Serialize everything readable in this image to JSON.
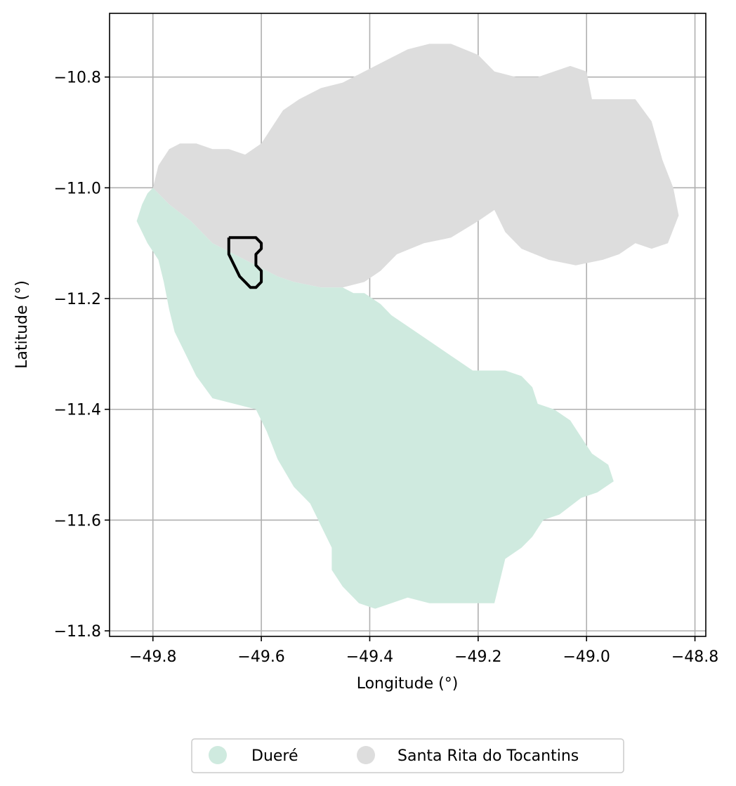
{
  "chart_data": {
    "type": "map",
    "xlabel": "Longitude (°)",
    "ylabel": "Latitude (°)",
    "xlim": [
      -49.88,
      -48.78
    ],
    "ylim": [
      -11.81,
      -10.685
    ],
    "x_ticks": [
      -49.8,
      -49.6,
      -49.4,
      -49.2,
      -49.0,
      -48.8
    ],
    "x_tick_labels": [
      "−49.8",
      "−49.6",
      "−49.4",
      "−49.2",
      "−49.0",
      "−48.8"
    ],
    "y_ticks": [
      -10.8,
      -11.0,
      -11.2,
      -11.4,
      -11.6,
      -11.8
    ],
    "y_tick_labels": [
      "−10.8",
      "−11.0",
      "−11.2",
      "−11.4",
      "−11.6",
      "−11.8"
    ],
    "grid": true,
    "legend_position": "bottom-center",
    "legend": [
      {
        "label": "Dueré",
        "color": "#cfeadf"
      },
      {
        "label": "Santa Rita do Tocantins",
        "color": "#dddddd"
      }
    ],
    "regions": [
      {
        "name": "Santa Rita do Tocantins",
        "color": "#dddddd",
        "coords": [
          [
            -49.8,
            -11.0
          ],
          [
            -49.79,
            -10.96
          ],
          [
            -49.77,
            -10.93
          ],
          [
            -49.75,
            -10.92
          ],
          [
            -49.72,
            -10.92
          ],
          [
            -49.69,
            -10.93
          ],
          [
            -49.66,
            -10.93
          ],
          [
            -49.63,
            -10.94
          ],
          [
            -49.6,
            -10.92
          ],
          [
            -49.58,
            -10.89
          ],
          [
            -49.56,
            -10.86
          ],
          [
            -49.53,
            -10.84
          ],
          [
            -49.49,
            -10.82
          ],
          [
            -49.45,
            -10.81
          ],
          [
            -49.41,
            -10.79
          ],
          [
            -49.37,
            -10.77
          ],
          [
            -49.33,
            -10.75
          ],
          [
            -49.29,
            -10.74
          ],
          [
            -49.25,
            -10.74
          ],
          [
            -49.2,
            -10.76
          ],
          [
            -49.17,
            -10.79
          ],
          [
            -49.13,
            -10.8
          ],
          [
            -49.09,
            -10.8
          ],
          [
            -49.06,
            -10.79
          ],
          [
            -49.03,
            -10.78
          ],
          [
            -49.0,
            -10.79
          ],
          [
            -48.99,
            -10.84
          ],
          [
            -48.91,
            -10.84
          ],
          [
            -48.88,
            -10.88
          ],
          [
            -48.86,
            -10.95
          ],
          [
            -48.84,
            -11.0
          ],
          [
            -48.83,
            -11.05
          ],
          [
            -48.85,
            -11.1
          ],
          [
            -48.88,
            -11.11
          ],
          [
            -48.91,
            -11.1
          ],
          [
            -48.94,
            -11.12
          ],
          [
            -48.97,
            -11.13
          ],
          [
            -49.02,
            -11.14
          ],
          [
            -49.07,
            -11.13
          ],
          [
            -49.12,
            -11.11
          ],
          [
            -49.15,
            -11.08
          ],
          [
            -49.17,
            -11.04
          ],
          [
            -49.2,
            -11.06
          ],
          [
            -49.25,
            -11.09
          ],
          [
            -49.3,
            -11.1
          ],
          [
            -49.35,
            -11.12
          ],
          [
            -49.38,
            -11.15
          ],
          [
            -49.41,
            -11.17
          ],
          [
            -49.45,
            -11.18
          ],
          [
            -49.49,
            -11.18
          ],
          [
            -49.54,
            -11.17
          ],
          [
            -49.57,
            -11.16
          ],
          [
            -49.61,
            -11.14
          ],
          [
            -49.65,
            -11.12
          ],
          [
            -49.69,
            -11.1
          ],
          [
            -49.73,
            -11.06
          ],
          [
            -49.77,
            -11.03
          ]
        ]
      },
      {
        "name": "Dueré",
        "color": "#cfeadf",
        "coords": [
          [
            -49.81,
            -11.01
          ],
          [
            -49.8,
            -11.0
          ],
          [
            -49.77,
            -11.03
          ],
          [
            -49.73,
            -11.06
          ],
          [
            -49.69,
            -11.1
          ],
          [
            -49.65,
            -11.12
          ],
          [
            -49.61,
            -11.14
          ],
          [
            -49.57,
            -11.16
          ],
          [
            -49.54,
            -11.17
          ],
          [
            -49.49,
            -11.18
          ],
          [
            -49.45,
            -11.18
          ],
          [
            -49.43,
            -11.19
          ],
          [
            -49.41,
            -11.19
          ],
          [
            -49.38,
            -11.21
          ],
          [
            -49.36,
            -11.23
          ],
          [
            -49.33,
            -11.25
          ],
          [
            -49.3,
            -11.27
          ],
          [
            -49.27,
            -11.29
          ],
          [
            -49.24,
            -11.31
          ],
          [
            -49.21,
            -11.33
          ],
          [
            -49.18,
            -11.33
          ],
          [
            -49.15,
            -11.33
          ],
          [
            -49.12,
            -11.34
          ],
          [
            -49.1,
            -11.36
          ],
          [
            -49.09,
            -11.39
          ],
          [
            -49.06,
            -11.4
          ],
          [
            -49.03,
            -11.42
          ],
          [
            -49.01,
            -11.45
          ],
          [
            -48.99,
            -11.48
          ],
          [
            -48.96,
            -11.5
          ],
          [
            -48.95,
            -11.53
          ],
          [
            -48.98,
            -11.55
          ],
          [
            -49.01,
            -11.56
          ],
          [
            -49.05,
            -11.59
          ],
          [
            -49.08,
            -11.6
          ],
          [
            -49.1,
            -11.63
          ],
          [
            -49.12,
            -11.65
          ],
          [
            -49.15,
            -11.67
          ],
          [
            -49.16,
            -11.71
          ],
          [
            -49.17,
            -11.75
          ],
          [
            -49.21,
            -11.75
          ],
          [
            -49.25,
            -11.75
          ],
          [
            -49.29,
            -11.75
          ],
          [
            -49.33,
            -11.74
          ],
          [
            -49.36,
            -11.75
          ],
          [
            -49.39,
            -11.76
          ],
          [
            -49.42,
            -11.75
          ],
          [
            -49.45,
            -11.72
          ],
          [
            -49.47,
            -11.69
          ],
          [
            -49.47,
            -11.65
          ],
          [
            -49.49,
            -11.61
          ],
          [
            -49.51,
            -11.57
          ],
          [
            -49.54,
            -11.54
          ],
          [
            -49.57,
            -11.49
          ],
          [
            -49.59,
            -11.44
          ],
          [
            -49.61,
            -11.4
          ],
          [
            -49.65,
            -11.39
          ],
          [
            -49.69,
            -11.38
          ],
          [
            -49.72,
            -11.34
          ],
          [
            -49.74,
            -11.3
          ],
          [
            -49.76,
            -11.26
          ],
          [
            -49.77,
            -11.22
          ],
          [
            -49.78,
            -11.17
          ],
          [
            -49.79,
            -11.13
          ],
          [
            -49.81,
            -11.1
          ],
          [
            -49.83,
            -11.06
          ],
          [
            -49.82,
            -11.03
          ]
        ]
      }
    ],
    "outline": {
      "color": "#000000",
      "coords": [
        [
          -49.66,
          -11.09
        ],
        [
          -49.63,
          -11.09
        ],
        [
          -49.61,
          -11.09
        ],
        [
          -49.6,
          -11.1
        ],
        [
          -49.6,
          -11.11
        ],
        [
          -49.61,
          -11.12
        ],
        [
          -49.61,
          -11.13
        ],
        [
          -49.61,
          -11.14
        ],
        [
          -49.6,
          -11.15
        ],
        [
          -49.6,
          -11.17
        ],
        [
          -49.61,
          -11.18
        ],
        [
          -49.62,
          -11.18
        ],
        [
          -49.63,
          -11.17
        ],
        [
          -49.64,
          -11.16
        ],
        [
          -49.65,
          -11.14
        ],
        [
          -49.66,
          -11.12
        ],
        [
          -49.66,
          -11.09
        ]
      ]
    }
  }
}
